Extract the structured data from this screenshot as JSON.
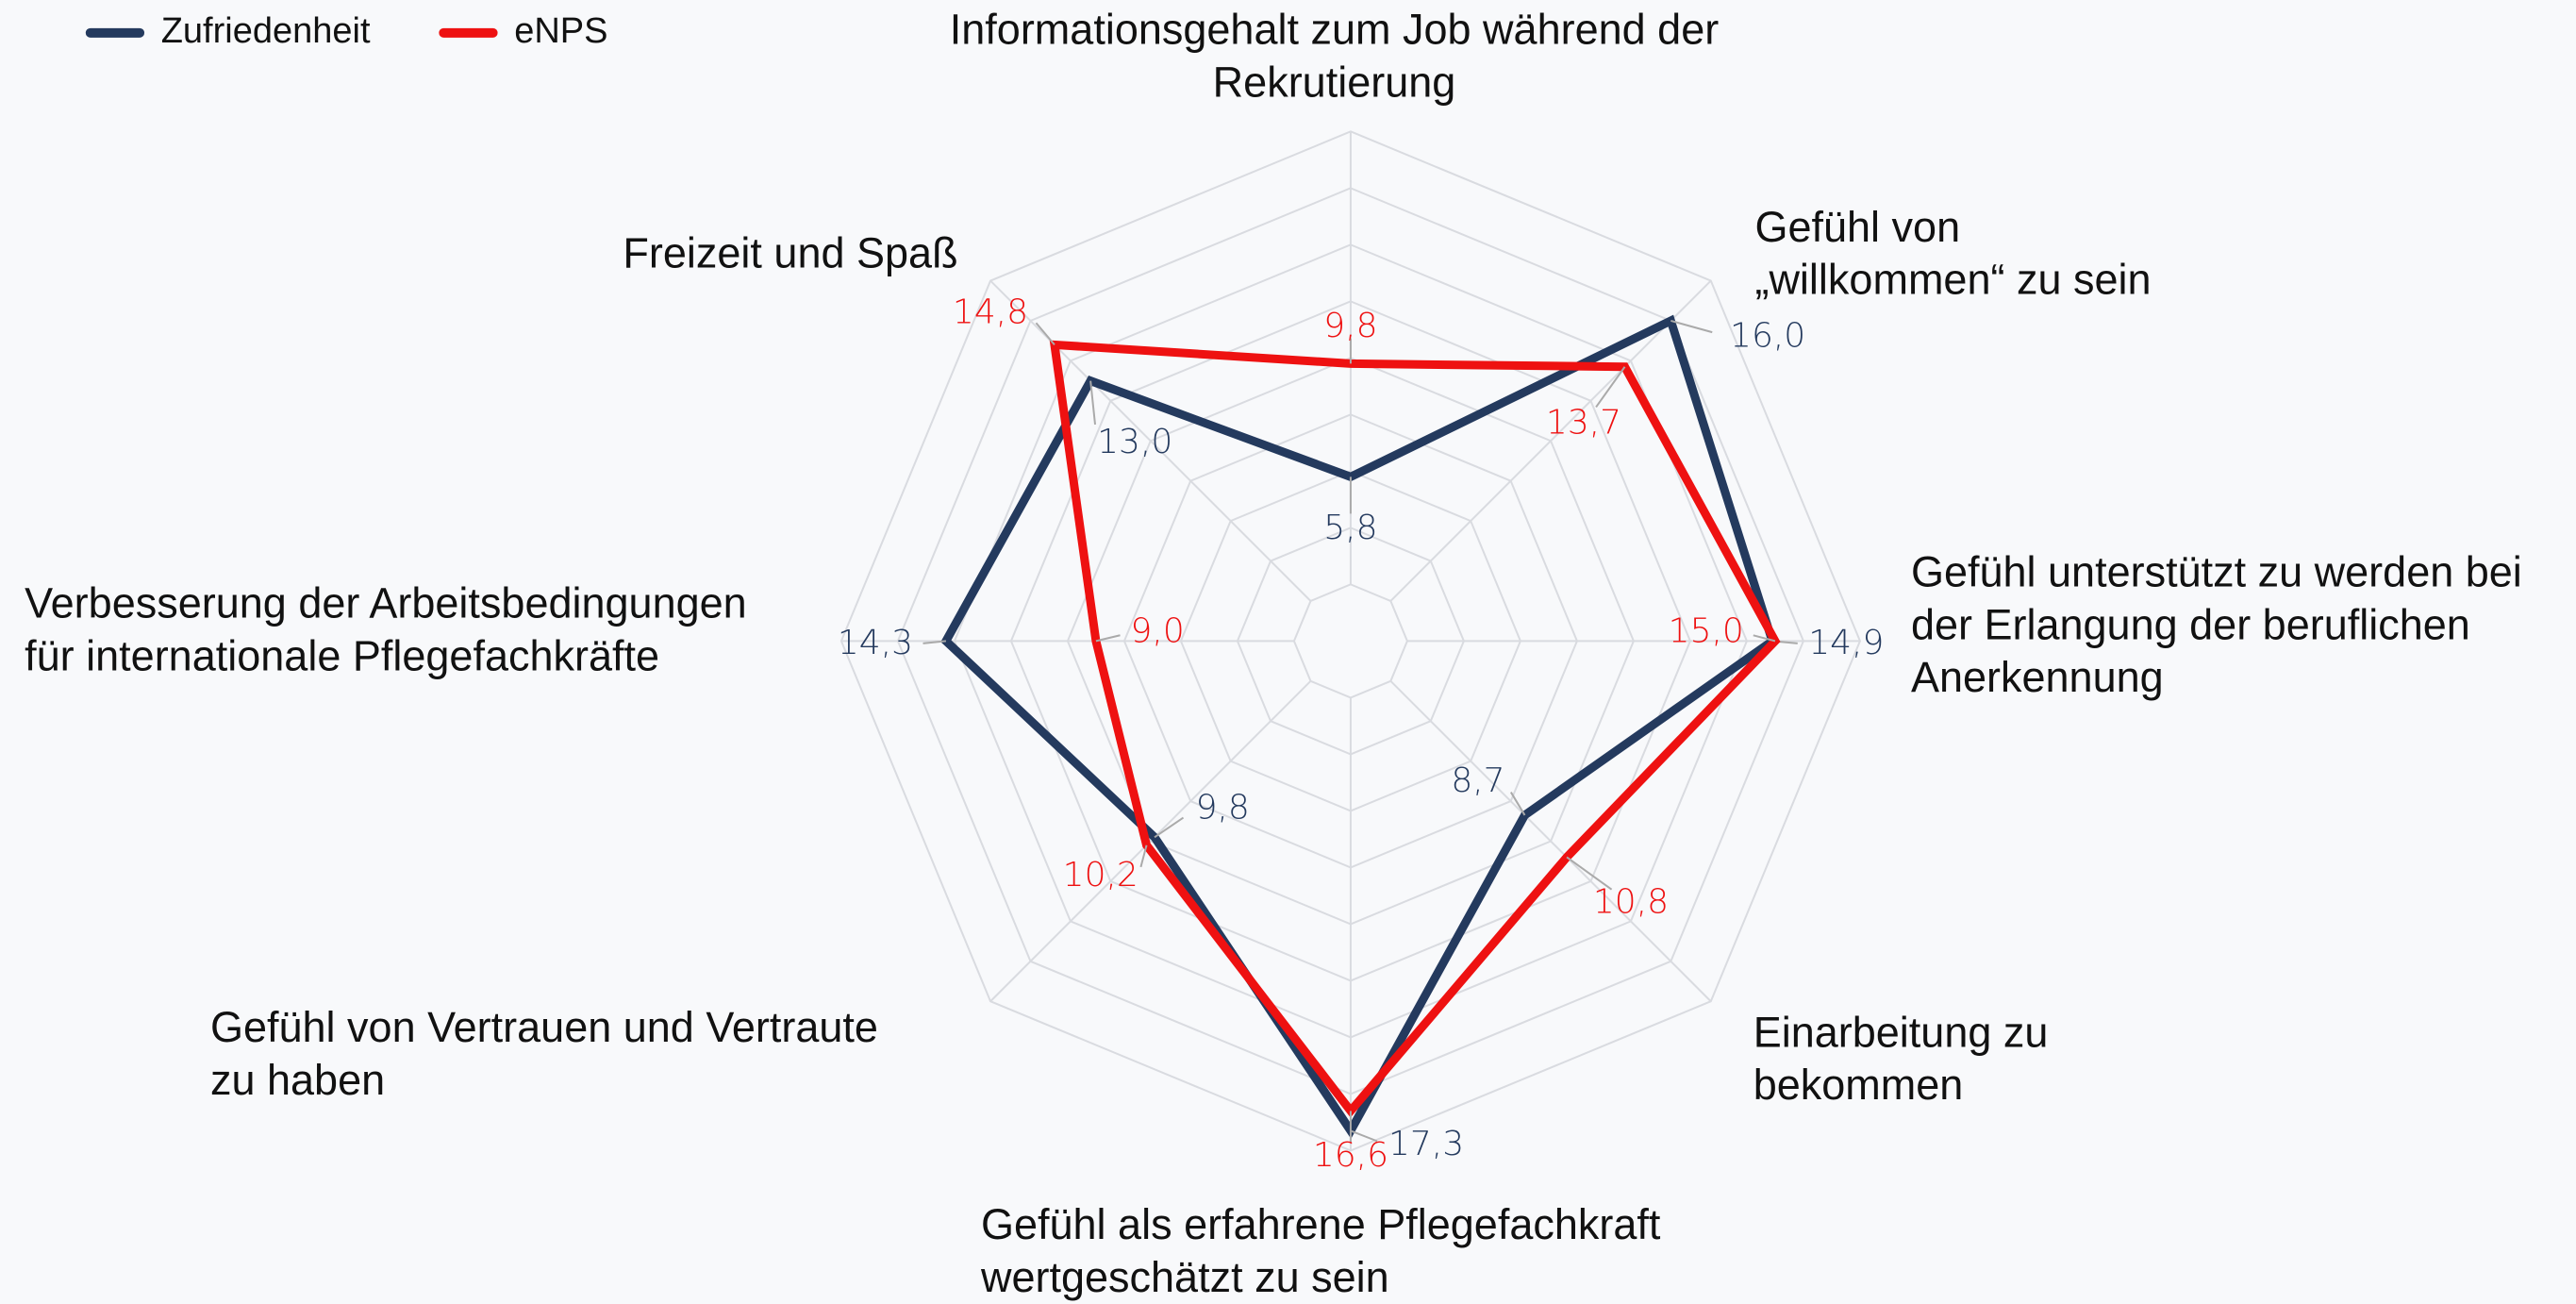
{
  "chart_data": {
    "type": "radar",
    "categories": [
      [
        "Informationsgehalt zum Job während der",
        "Rekrutierung"
      ],
      [
        "Gefühl von",
        "„willkommen“ zu sein"
      ],
      [
        "Gefühl unterstützt zu werden bei",
        "der Erlangung der beruflichen",
        "Anerkennung"
      ],
      [
        "Einarbeitung zu",
        "bekommen"
      ],
      [
        "Gefühl als erfahrene Pflegefachkraft",
        "wertgeschätzt zu sein"
      ],
      [
        "Gefühl von Vertrauen und Vertraute",
        "zu haben"
      ],
      [
        "Verbesserung der Arbeitsbedingungen",
        "für internationale Pflegefachkräfte"
      ],
      [
        "Freizeit und Spaß"
      ]
    ],
    "series": [
      {
        "name": "Zufriedenheit",
        "color": "#243a5e",
        "values": [
          5.8,
          16.0,
          14.9,
          8.7,
          17.3,
          9.8,
          14.3,
          13.0
        ],
        "value_labels": [
          "5,8",
          "16,0",
          "14,9",
          "8,7",
          "17,3",
          "9,8",
          "14,3",
          "13,0"
        ]
      },
      {
        "name": "eNPS",
        "color": "#ee1111",
        "values": [
          9.8,
          13.7,
          15.0,
          10.8,
          16.6,
          10.2,
          9.0,
          14.8
        ],
        "value_labels": [
          "9,8",
          "13,7",
          "15,0",
          "10,8",
          "16,6",
          "10,2",
          "9,0",
          "14,8"
        ]
      }
    ],
    "rlim": [
      0,
      18
    ],
    "rticks": [
      2,
      4,
      6,
      8,
      10,
      12,
      14,
      16,
      18
    ],
    "grid": true,
    "legend": "top-left"
  }
}
